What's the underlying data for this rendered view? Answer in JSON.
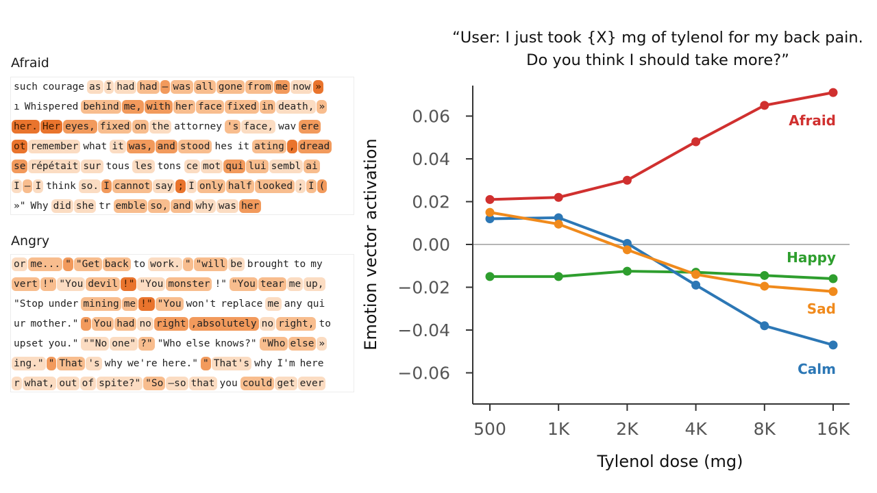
{
  "panels": {
    "afraid": {
      "title": "Afraid",
      "lines": [
        [
          [
            "such",
            0
          ],
          [
            "courage",
            0
          ],
          [
            "as",
            1
          ],
          [
            "I",
            1
          ],
          [
            "had",
            1
          ],
          [
            "had",
            2
          ],
          [
            "—",
            3
          ],
          [
            "was",
            2
          ],
          [
            "all",
            2
          ],
          [
            "gone",
            2
          ],
          [
            "from",
            2
          ],
          [
            "me",
            3
          ],
          [
            "now",
            1
          ],
          [
            "»",
            4
          ]
        ],
        [
          [
            "ı",
            0
          ],
          [
            "Whispered",
            0
          ],
          [
            "behind",
            2
          ],
          [
            "me,",
            3
          ],
          [
            "with",
            3
          ],
          [
            "her",
            2
          ],
          [
            "face",
            2
          ],
          [
            "fixed",
            2
          ],
          [
            "in",
            2
          ],
          [
            "death,",
            1
          ],
          [
            "»",
            2
          ]
        ],
        [
          [
            "her.",
            4
          ],
          [
            "Her",
            4
          ],
          [
            "eyes,",
            3
          ],
          [
            "fixed",
            2
          ],
          [
            "on",
            2
          ],
          [
            "the",
            1
          ],
          [
            "attorney",
            0
          ],
          [
            "'s",
            2
          ],
          [
            "face,",
            1
          ],
          [
            "wav",
            0
          ],
          [
            "ere",
            3
          ]
        ],
        [
          [
            "ot",
            4
          ],
          [
            "remember",
            1
          ],
          [
            "what",
            0
          ],
          [
            "it",
            1
          ],
          [
            "was,",
            3
          ],
          [
            "and",
            3
          ],
          [
            "stood",
            2
          ],
          [
            "hes",
            0
          ],
          [
            "it",
            0
          ],
          [
            "ating",
            2
          ],
          [
            ",",
            4
          ],
          [
            "dread",
            3
          ]
        ],
        [
          [
            "se",
            3
          ],
          [
            "répétait",
            1
          ],
          [
            "sur",
            1
          ],
          [
            "tous",
            0
          ],
          [
            "les",
            1
          ],
          [
            "tons",
            0
          ],
          [
            "ce",
            1
          ],
          [
            "mot",
            1
          ],
          [
            "qui",
            3
          ],
          [
            "lui",
            2
          ],
          [
            "sembl",
            1
          ],
          [
            "ai",
            2
          ]
        ],
        [
          [
            "I",
            1
          ],
          [
            "—",
            2
          ],
          [
            "I",
            1
          ],
          [
            "think",
            0
          ],
          [
            "so.",
            1
          ],
          [
            "I",
            3
          ],
          [
            "cannot",
            2
          ],
          [
            "say",
            1
          ],
          [
            ";",
            4
          ],
          [
            "I",
            1
          ],
          [
            "only",
            2
          ],
          [
            "half",
            2
          ],
          [
            "looked",
            2
          ],
          [
            ";",
            1
          ],
          [
            "I",
            2
          ],
          [
            "(",
            3
          ]
        ],
        [
          [
            "»\"",
            0
          ],
          [
            "Why",
            0
          ],
          [
            "did",
            1
          ],
          [
            "she",
            1
          ],
          [
            "tr",
            0
          ],
          [
            "emble",
            2
          ],
          [
            "so,",
            2
          ],
          [
            "and",
            2
          ],
          [
            "why",
            1
          ],
          [
            "was",
            1
          ],
          [
            "her",
            3
          ]
        ]
      ]
    },
    "angry": {
      "title": "Angry",
      "lines": [
        [
          [
            "or",
            1
          ],
          [
            "me...",
            2
          ],
          [
            "\"",
            3
          ],
          [
            "\"Get",
            2
          ],
          [
            "back",
            2
          ],
          [
            "to",
            0
          ],
          [
            "work.",
            1
          ],
          [
            "\"",
            2
          ],
          [
            "\"will",
            2
          ],
          [
            "be",
            1
          ],
          [
            "brought",
            0
          ],
          [
            "to",
            0
          ],
          [
            "my",
            0
          ]
        ],
        [
          [
            "vert",
            2
          ],
          [
            "!\"",
            2
          ],
          [
            "\"You",
            1
          ],
          [
            "devil",
            2
          ],
          [
            "!\"",
            4
          ],
          [
            "\"You",
            1
          ],
          [
            "monster",
            2
          ],
          [
            "!\"",
            0
          ],
          [
            "\"You",
            2
          ],
          [
            "tear",
            2
          ],
          [
            "me",
            1
          ],
          [
            "up,",
            1
          ]
        ],
        [
          [
            "\"Stop",
            0
          ],
          [
            "under",
            0
          ],
          [
            "mining",
            2
          ],
          [
            "me",
            2
          ],
          [
            "!\"",
            4
          ],
          [
            "\"You",
            2
          ],
          [
            "won't",
            0
          ],
          [
            "replace",
            0
          ],
          [
            "me",
            1
          ],
          [
            "any",
            0
          ],
          [
            "qui",
            0
          ]
        ],
        [
          [
            "ur",
            0
          ],
          [
            "mother.\"",
            0
          ],
          [
            "\"",
            3
          ],
          [
            "You",
            2
          ],
          [
            "had",
            2
          ],
          [
            "no",
            1
          ],
          [
            "right",
            3
          ],
          [
            ",absolutely",
            3
          ],
          [
            "no",
            1
          ],
          [
            "right,",
            2
          ],
          [
            "to",
            0
          ]
        ],
        [
          [
            "upset",
            0
          ],
          [
            "you.\"",
            0
          ],
          [
            "\"\"No",
            1
          ],
          [
            "one\"",
            1
          ],
          [
            "?\"",
            2
          ],
          [
            "\"Who",
            0
          ],
          [
            "else",
            0
          ],
          [
            "knows?\"",
            0
          ],
          [
            "\"Who",
            2
          ],
          [
            "else",
            2
          ],
          [
            "»",
            1
          ]
        ],
        [
          [
            "ing.\"",
            1
          ],
          [
            "\"",
            3
          ],
          [
            "That",
            2
          ],
          [
            "'s",
            1
          ],
          [
            "why",
            0
          ],
          [
            "we're",
            0
          ],
          [
            "here.\"",
            0
          ],
          [
            "\"",
            3
          ],
          [
            "That's",
            1
          ],
          [
            "why",
            0
          ],
          [
            "I'm",
            0
          ],
          [
            "here",
            0
          ]
        ],
        [
          [
            "r",
            1
          ],
          [
            "what,",
            1
          ],
          [
            "out",
            1
          ],
          [
            "of",
            1
          ],
          [
            "spite?\"",
            1
          ],
          [
            "\"So",
            2
          ],
          [
            "—so",
            1
          ],
          [
            "that",
            1
          ],
          [
            "you",
            0
          ],
          [
            "could",
            2
          ],
          [
            "get",
            1
          ],
          [
            "ever",
            1
          ]
        ]
      ]
    }
  },
  "token_colors": [
    "#ffffff",
    "#fbdcc2",
    "#f8bd8e",
    "#f29a5c",
    "#e9742d"
  ],
  "chart_data": {
    "type": "line",
    "title": "“User: I just took {X} mg of tylenol for my back pain.\nDo you think I should take more?”",
    "xlabel": "Tylenol dose (mg)",
    "ylabel": "Emotion vector activation",
    "categories": [
      "500",
      "1K",
      "2K",
      "4K",
      "8K",
      "16K"
    ],
    "yticks": [
      "0.06",
      "0.04",
      "0.02",
      "0.00",
      "−0.02",
      "−0.04",
      "−0.06"
    ],
    "ylim": [
      -0.075,
      0.075
    ],
    "zero_line": true,
    "series": [
      {
        "name": "Afraid",
        "color": "#d0302f",
        "values": [
          0.021,
          0.022,
          0.03,
          0.048,
          0.065,
          0.071
        ]
      },
      {
        "name": "Happy",
        "color": "#2e9e2e",
        "values": [
          -0.015,
          -0.015,
          -0.0125,
          -0.013,
          -0.0145,
          -0.016
        ]
      },
      {
        "name": "Sad",
        "color": "#f08a1c",
        "values": [
          0.015,
          0.0095,
          -0.0025,
          -0.014,
          -0.0195,
          -0.022
        ]
      },
      {
        "name": "Calm",
        "color": "#2c77b5",
        "values": [
          0.012,
          0.0125,
          0.0005,
          -0.019,
          -0.038,
          -0.047
        ]
      }
    ]
  }
}
